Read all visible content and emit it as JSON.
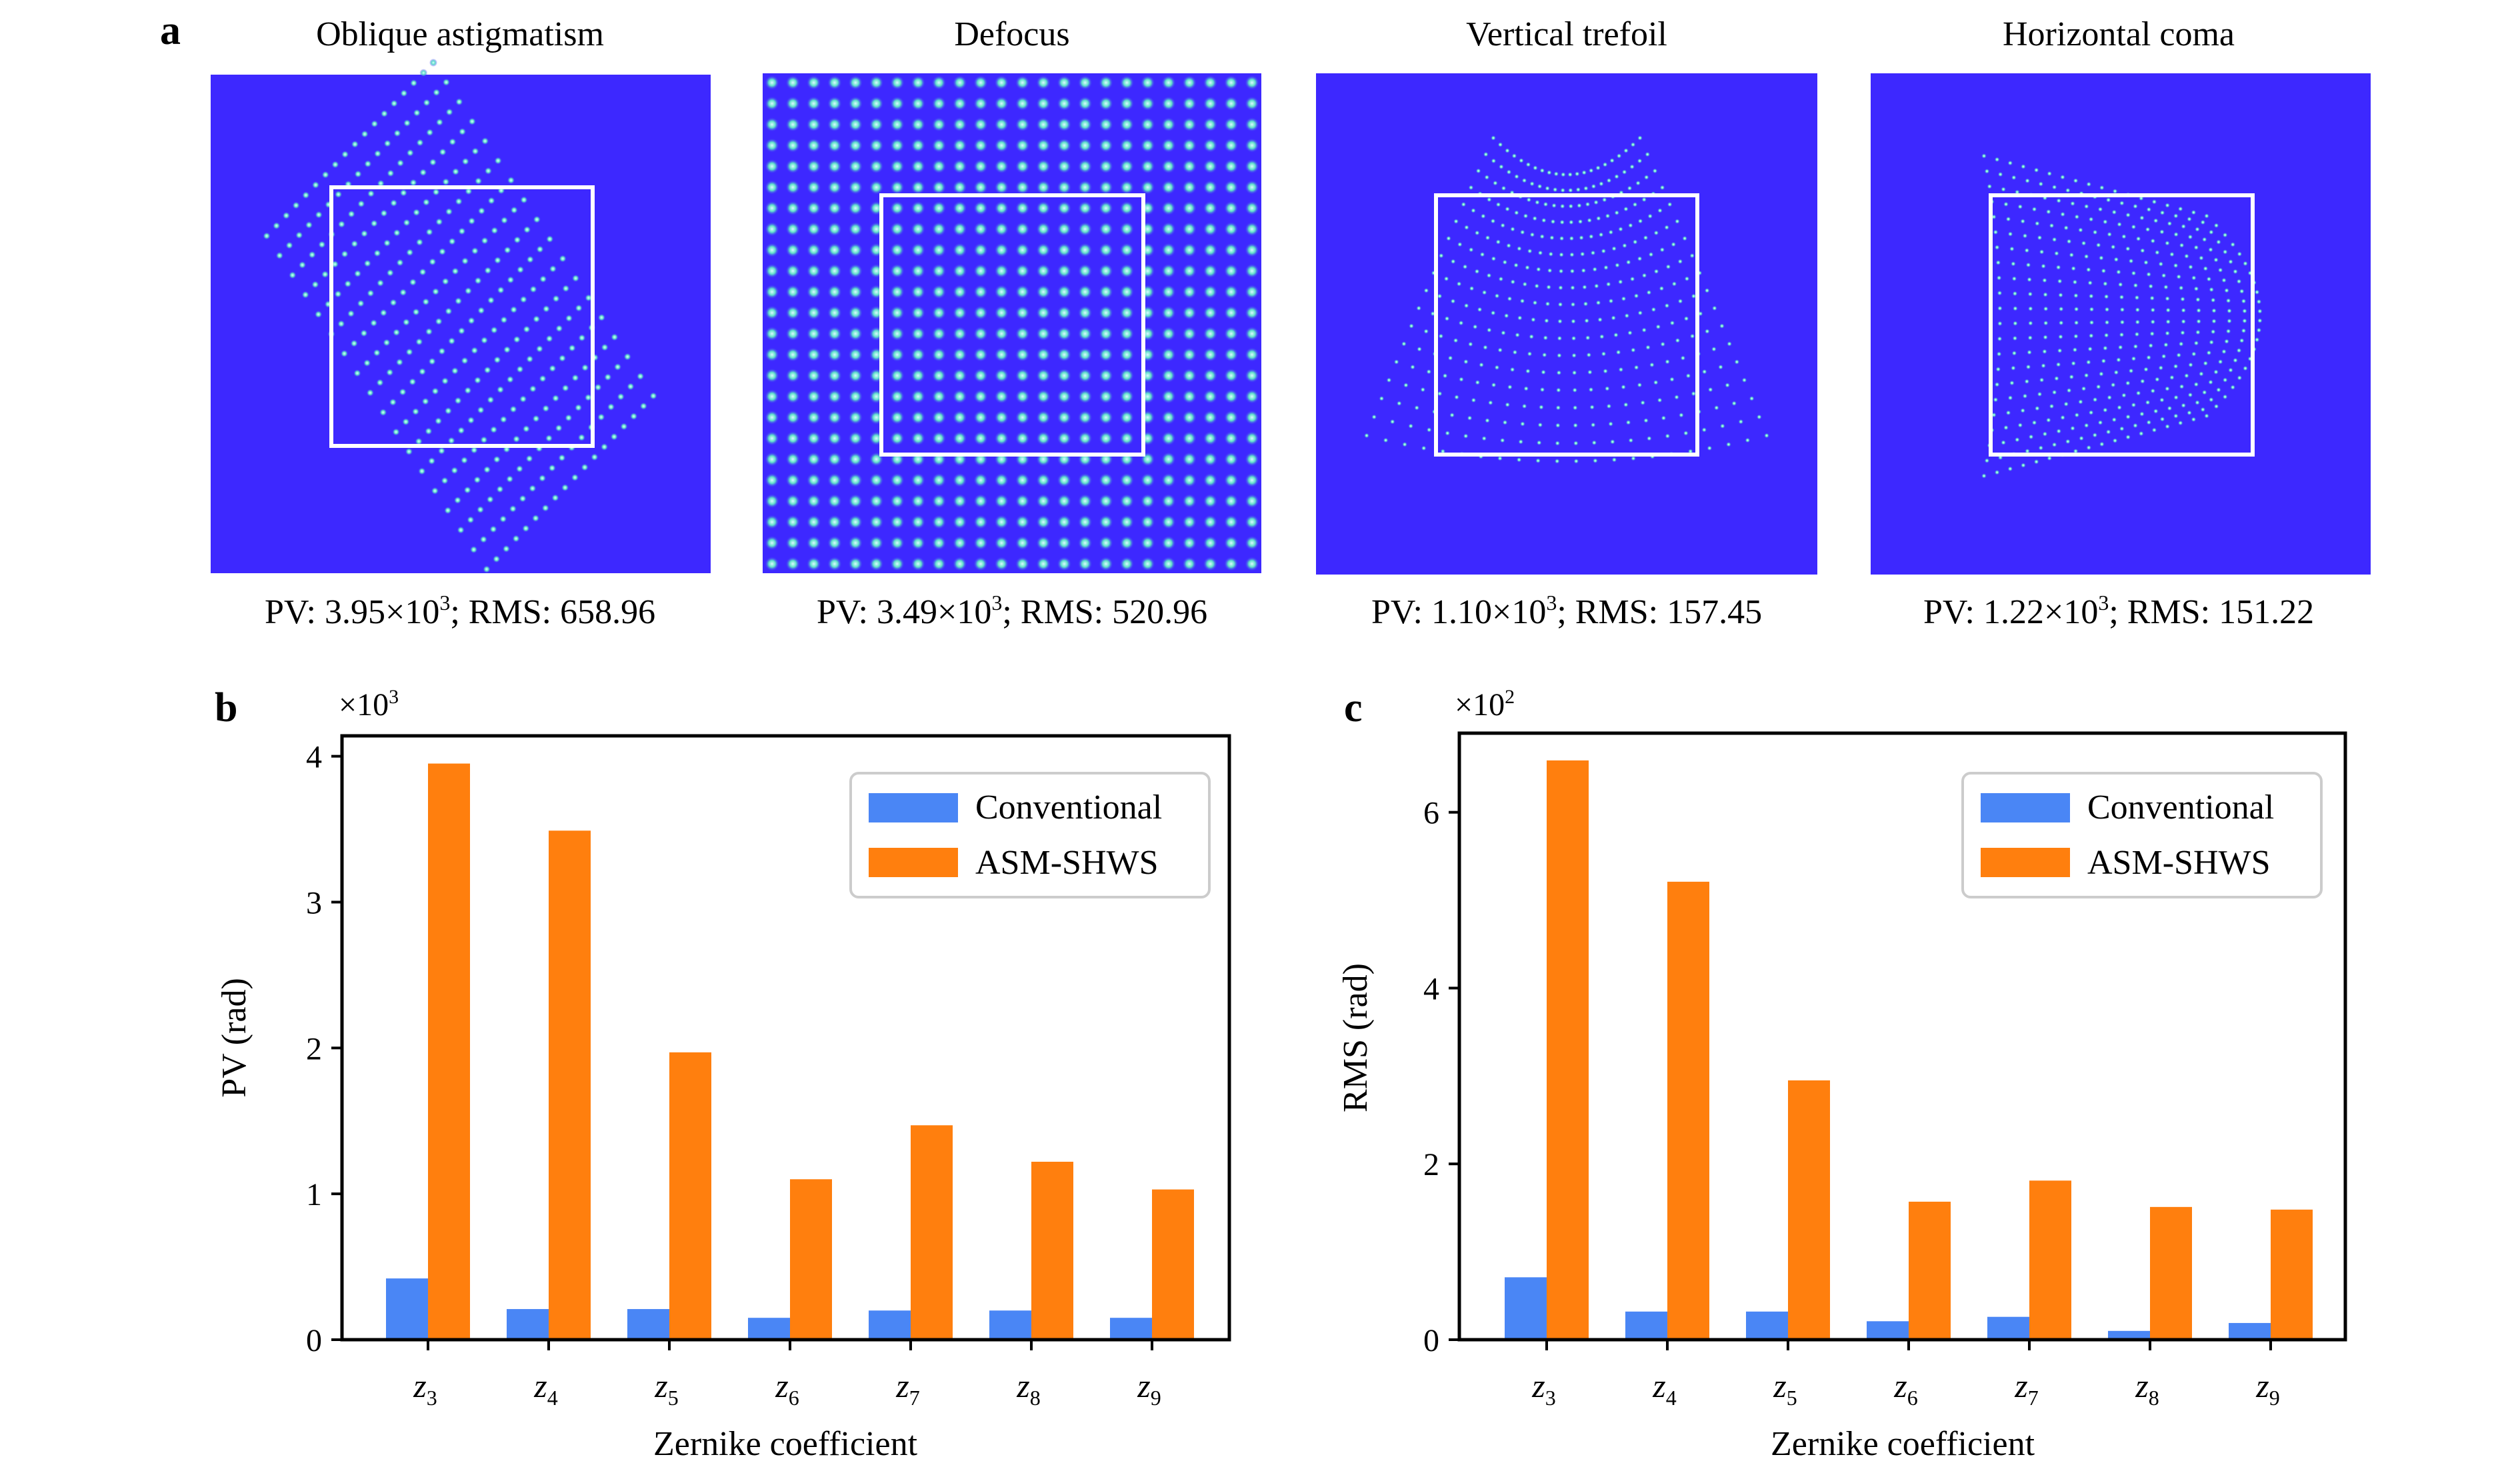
{
  "panel_labels": {
    "a": "a",
    "b": "b",
    "c": "c"
  },
  "panel_a": {
    "images": [
      {
        "title": "Oblique astigmatism",
        "pv_mantissa": "PV: 3.95×10",
        "pv_exp": "3",
        "rms": "; RMS: 658.96",
        "pattern": "oblique-astigmatism"
      },
      {
        "title": "Defocus",
        "pv_mantissa": "PV: 3.49×10",
        "pv_exp": "3",
        "rms": "; RMS: 520.96",
        "pattern": "defocus"
      },
      {
        "title": "Vertical trefoil",
        "pv_mantissa": "PV: 1.10×10",
        "pv_exp": "3",
        "rms": "; RMS: 157.45",
        "pattern": "vertical-trefoil"
      },
      {
        "title": "Horizontal coma",
        "pv_mantissa": "PV: 1.22×10",
        "pv_exp": "3",
        "rms": "; RMS: 151.22",
        "pattern": "horizontal-coma"
      }
    ],
    "colors": {
      "background": "#3d28ff",
      "spot": "#5fe0c8",
      "spot_core": "#c8f5ff",
      "roi_box": "#ffffff"
    }
  },
  "colors": {
    "conventional": "#4a86f5",
    "asm_shws": "#ff7f0e"
  },
  "chart_data": [
    {
      "type": "bar",
      "panel": "b",
      "categories": [
        "z3",
        "z4",
        "z5",
        "z6",
        "z7",
        "z8",
        "z9"
      ],
      "category_subscripts": [
        "3",
        "4",
        "5",
        "6",
        "7",
        "8",
        "9"
      ],
      "category_base": "z",
      "series": [
        {
          "name": "Conventional",
          "values": [
            0.42,
            0.21,
            0.21,
            0.15,
            0.2,
            0.2,
            0.15
          ]
        },
        {
          "name": "ASM-SHWS",
          "values": [
            3.95,
            3.49,
            1.97,
            1.1,
            1.47,
            1.22,
            1.03
          ]
        }
      ],
      "multiplier": "×10",
      "multiplier_exp": "3",
      "xlabel": "Zernike coefficient",
      "ylabel": "PV (rad)",
      "ylim": [
        0,
        4.14
      ],
      "yticks": [
        0,
        1,
        2,
        3,
        4
      ],
      "legend": "top-right",
      "grid": false
    },
    {
      "type": "bar",
      "panel": "c",
      "categories": [
        "z3",
        "z4",
        "z5",
        "z6",
        "z7",
        "z8",
        "z9"
      ],
      "category_subscripts": [
        "3",
        "4",
        "5",
        "6",
        "7",
        "8",
        "9"
      ],
      "category_base": "z",
      "series": [
        {
          "name": "Conventional",
          "values": [
            0.71,
            0.32,
            0.32,
            0.21,
            0.26,
            0.1,
            0.19
          ]
        },
        {
          "name": "ASM-SHWS",
          "values": [
            6.59,
            5.21,
            2.95,
            1.57,
            1.81,
            1.51,
            1.48
          ]
        }
      ],
      "multiplier": "×10",
      "multiplier_exp": "2",
      "xlabel": "Zernike coefficient",
      "ylabel": "RMS (rad)",
      "ylim": [
        0,
        6.9
      ],
      "yticks": [
        0,
        2,
        4,
        6
      ],
      "legend": "top-right",
      "grid": false
    }
  ]
}
